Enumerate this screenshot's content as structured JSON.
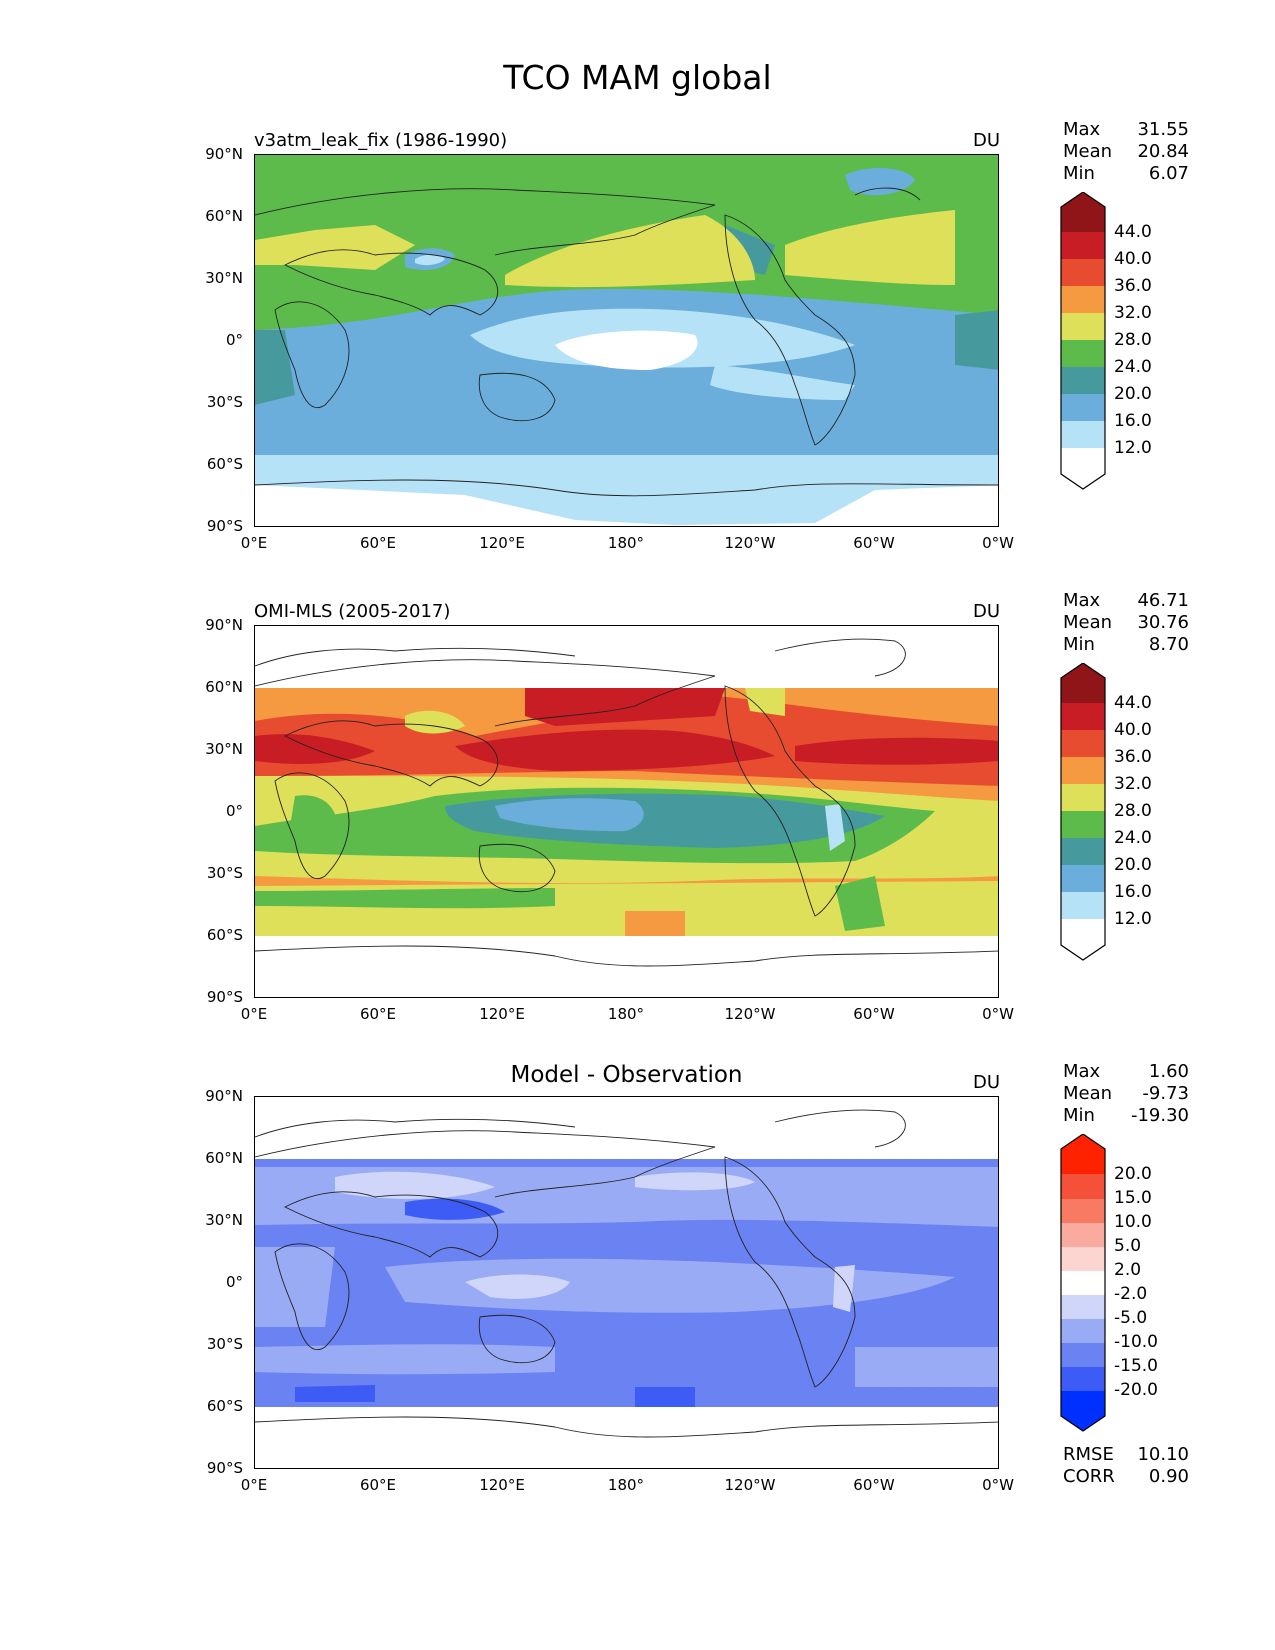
{
  "title": "TCO MAM global",
  "x_ticks": [
    "0°E",
    "60°E",
    "120°E",
    "180°",
    "120°W",
    "60°W",
    "0°W"
  ],
  "y_ticks": [
    "90°N",
    "60°N",
    "30°N",
    "0°",
    "30°S",
    "60°S",
    "90°S"
  ],
  "colors": {
    "ozone_levels": [
      "#ffffff",
      "#b5e2f7",
      "#6baedb",
      "#469a9e",
      "#5cbb4b",
      "#dfe05a",
      "#f59a40",
      "#e74c31",
      "#c81d25",
      "#8f1518"
    ],
    "diff_levels": [
      "#0030ff",
      "#3d5cf5",
      "#6a82f2",
      "#9aabf5",
      "#cfd6fa",
      "#ffffff",
      "#fdd5d0",
      "#fbaaa0",
      "#f87a62",
      "#f5503a",
      "#ff2200"
    ]
  },
  "panels": [
    {
      "id": "model",
      "title": "v3atm_leak_fix (1986-1990)",
      "unit": "DU",
      "stats": {
        "max_label": "Max",
        "max": "31.55",
        "mean_label": "Mean",
        "mean": "20.84",
        "min_label": "Min",
        "min": "6.07"
      },
      "colorbar_labels": [
        "44.0",
        "40.0",
        "36.0",
        "32.0",
        "28.0",
        "24.0",
        "20.0",
        "16.0",
        "12.0"
      ]
    },
    {
      "id": "obs",
      "title": "OMI-MLS (2005-2017)",
      "unit": "DU",
      "stats": {
        "max_label": "Max",
        "max": "46.71",
        "mean_label": "Mean",
        "mean": "30.76",
        "min_label": "Min",
        "min": "8.70"
      },
      "colorbar_labels": [
        "44.0",
        "40.0",
        "36.0",
        "32.0",
        "28.0",
        "24.0",
        "20.0",
        "16.0",
        "12.0"
      ]
    },
    {
      "id": "diff",
      "title": "Model - Observation",
      "unit": "DU",
      "stats": {
        "max_label": "Max",
        "max": "1.60",
        "mean_label": "Mean",
        "mean": "-9.73",
        "min_label": "Min",
        "min": "-19.30"
      },
      "colorbar_labels": [
        "20.0",
        "15.0",
        "10.0",
        "5.0",
        "2.0",
        "-2.0",
        "-5.0",
        "-10.0",
        "-15.0",
        "-20.0"
      ],
      "extra": {
        "rmse_label": "RMSE",
        "rmse": "10.10",
        "corr_label": "CORR",
        "corr": "0.90"
      }
    }
  ]
}
